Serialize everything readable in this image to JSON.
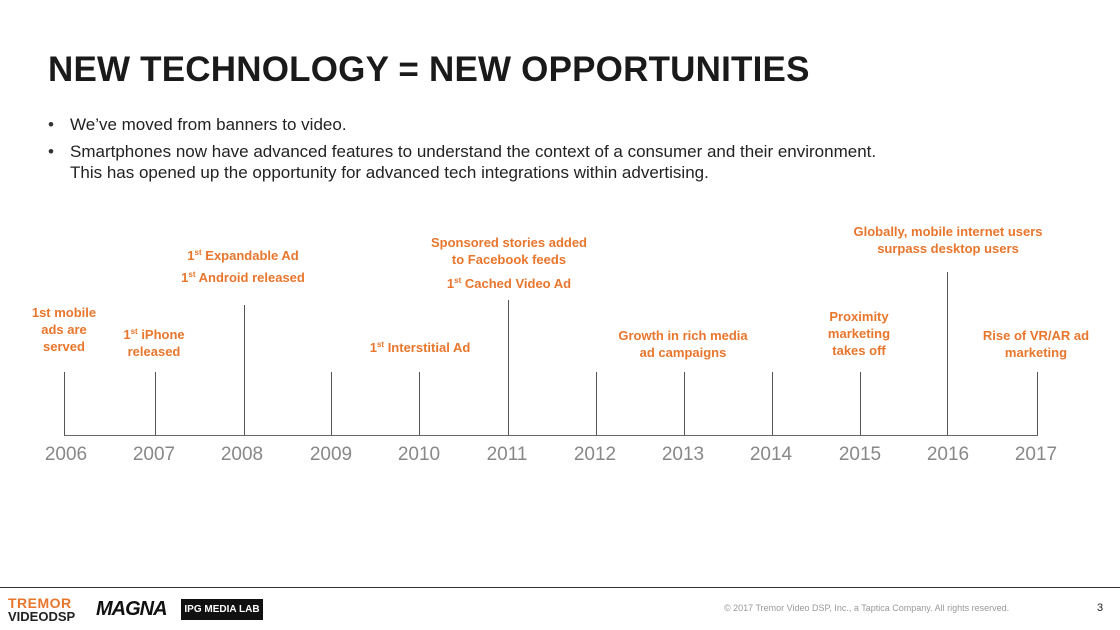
{
  "title": "NEW TECHNOLOGY = NEW OPPORTUNITIES",
  "bullets": [
    {
      "lines": [
        "We’ve moved from banners to video."
      ]
    },
    {
      "lines": [
        "Smartphones now have advanced features to understand the context of a consumer and their environment.",
        "This has opened up the opportunity for advanced tech integrations within advertising."
      ]
    }
  ],
  "timeline": {
    "years": [
      "2006",
      "2007",
      "2008",
      "2009",
      "2010",
      "2011",
      "2012",
      "2013",
      "2014",
      "2015",
      "2016",
      "2017"
    ],
    "events": {
      "e2006": {
        "l1": "1st mobile",
        "l2": "ads are",
        "l3": "served"
      },
      "e2007": {
        "sup": "st",
        "l1": " iPhone",
        "l2": "released"
      },
      "e2008a": {
        "sup": "st",
        "text": " Expandable Ad"
      },
      "e2008b": {
        "sup": "st",
        "text": " Android released"
      },
      "e2010": {
        "sup": "st",
        "text": " Interstitial Ad"
      },
      "e2011a": {
        "l1": "Sponsored stories added",
        "l2": "to Facebook feeds"
      },
      "e2011b": {
        "sup": "st",
        "text": " Cached Video Ad"
      },
      "e2013": {
        "l1": "Growth in rich media",
        "l2": "ad campaigns"
      },
      "e2015": {
        "l1": "Proximity",
        "l2": "marketing",
        "l3": "takes off"
      },
      "e2016": {
        "l1": "Globally, mobile internet users",
        "l2": "surpass desktop users"
      },
      "e2017": {
        "l1": "Rise of VR/AR ad",
        "l2": "marketing"
      }
    },
    "event_number": "1"
  },
  "footer": {
    "logo_tremor_top": "TREMOR",
    "logo_tremor_bottom": "VIDEODSP",
    "logo_magna": "MAGNA",
    "logo_ipg": "IPG MEDIA LAB",
    "copyright": "© 2017 Tremor Video DSP, Inc., a Taptica Company. All rights reserved.",
    "page_number": "3"
  },
  "colors": {
    "accent": "#e8762d",
    "year": "#888888",
    "title": "#1a1a1a"
  }
}
